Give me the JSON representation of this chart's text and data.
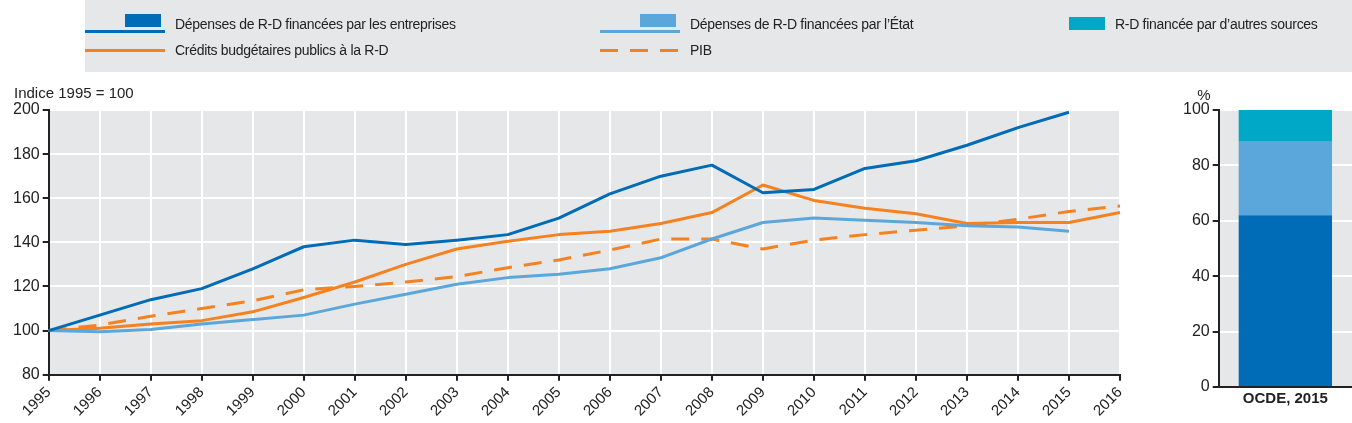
{
  "chart_data": [
    {
      "type": "line",
      "ylabel": "Indice 1995 = 100",
      "categories": [
        "1995",
        "1996",
        "1997",
        "1998",
        "1999",
        "2000",
        "2001",
        "2002",
        "2003",
        "2004",
        "2005",
        "2006",
        "2007",
        "2008",
        "2009",
        "2010",
        "2011",
        "2012",
        "2013",
        "2014",
        "2015",
        "2016"
      ],
      "series": [
        {
          "name": "Dépenses de R-D financées par les entreprises",
          "color": "#006bb6",
          "values": [
            100,
            107,
            114,
            119,
            128,
            138,
            141,
            139,
            141,
            143.5,
            151,
            162,
            170,
            175,
            162.5,
            164,
            173.5,
            177,
            184,
            192,
            199,
            null
          ]
        },
        {
          "name": "Dépenses de R-D financées par l’État",
          "color": "#5ba7db",
          "values": [
            100,
            99.5,
            100.5,
            103,
            105,
            107,
            112,
            116.5,
            121,
            124,
            125.5,
            128,
            133,
            141.5,
            149,
            151,
            150,
            149,
            147.5,
            147,
            145,
            null
          ]
        },
        {
          "name": "Crédits budgétaires publics à la R-D",
          "color": "#f58220",
          "values": [
            100,
            101,
            103,
            104.5,
            108.5,
            115,
            122,
            130,
            137,
            140.5,
            143.5,
            145,
            148.5,
            153.5,
            166,
            159,
            155.5,
            153,
            148.5,
            149,
            149,
            153.5
          ]
        },
        {
          "name": "PIB",
          "color": "#f58220",
          "line_style": "dashed",
          "values": [
            100,
            102.5,
            106.5,
            110,
            113.5,
            118.5,
            120,
            122,
            124.5,
            128.5,
            132,
            136.5,
            141.5,
            141.5,
            137,
            141,
            143.5,
            145.5,
            147.5,
            150.5,
            154,
            156.5
          ]
        }
      ],
      "ylim": [
        80,
        200
      ],
      "yticks": [
        80,
        100,
        120,
        140,
        160,
        180,
        200
      ],
      "grid": true,
      "legend": "top",
      "marker": "none"
    },
    {
      "type": "bar",
      "stacked": true,
      "ylabel": "%",
      "categories": [
        "OCDE, 2015"
      ],
      "series": [
        {
          "color": "#006bb6",
          "values": [
            62
          ]
        },
        {
          "color": "#5ba7db",
          "values": [
            26.5
          ]
        },
        {
          "name": "R-D financée par d’autres sources",
          "color": "#00a8c8",
          "values": [
            11.5
          ]
        }
      ],
      "ylim": [
        0,
        100
      ],
      "yticks": [
        0,
        20,
        40,
        60,
        80,
        100
      ],
      "grid": "y",
      "legend": "top"
    }
  ]
}
